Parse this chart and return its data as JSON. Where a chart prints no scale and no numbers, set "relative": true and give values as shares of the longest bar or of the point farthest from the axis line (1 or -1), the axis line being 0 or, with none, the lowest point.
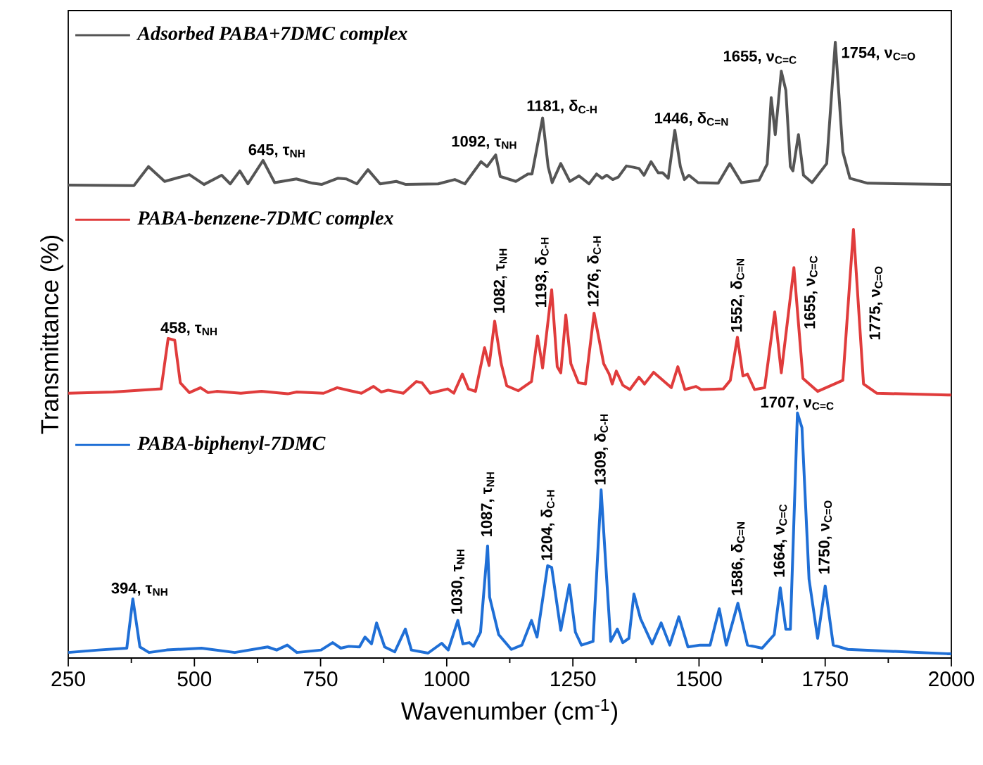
{
  "chart_data": {
    "type": "line",
    "relative": true,
    "legend": "top left",
    "xlabel": "Wavenumber (cm$^{-1}$)",
    "ylabel": "Transmittance (%)",
    "xlim": [
      250,
      2000
    ],
    "xticks": [
      250,
      500,
      750,
      1000,
      1250,
      1500,
      1750,
      2000
    ],
    "series": [
      {
        "name": "Adsorbed PABA+7DMC complex",
        "color": "#555555",
        "x": [
          250,
          380,
          409,
          441,
          490,
          519,
          554,
          571,
          590,
          606,
          636,
          659,
          702,
          734,
          752,
          784,
          801,
          822,
          844,
          868,
          900,
          919,
          983,
          1016,
          1036,
          1068,
          1080,
          1097,
          1106,
          1137,
          1161,
          1169,
          1190,
          1201,
          1209,
          1226,
          1244,
          1262,
          1282,
          1297,
          1308,
          1317,
          1329,
          1340,
          1356,
          1370,
          1381,
          1391,
          1405,
          1419,
          1428,
          1439,
          1452,
          1463,
          1471,
          1480,
          1498,
          1538,
          1561,
          1584,
          1619,
          1635,
          1643,
          1651,
          1663,
          1672,
          1681,
          1686,
          1697,
          1707,
          1724,
          1753,
          1770,
          1785,
          1799,
          1834,
          1986,
          2000
        ],
        "values": [
          0.768,
          0.767,
          0.798,
          0.774,
          0.785,
          0.769,
          0.784,
          0.77,
          0.791,
          0.77,
          0.808,
          0.772,
          0.778,
          0.771,
          0.769,
          0.779,
          0.778,
          0.77,
          0.793,
          0.77,
          0.774,
          0.769,
          0.77,
          0.777,
          0.77,
          0.806,
          0.798,
          0.817,
          0.782,
          0.774,
          0.786,
          0.786,
          0.877,
          0.798,
          0.772,
          0.803,
          0.774,
          0.783,
          0.77,
          0.786,
          0.779,
          0.784,
          0.777,
          0.781,
          0.799,
          0.797,
          0.795,
          0.784,
          0.806,
          0.788,
          0.788,
          0.779,
          0.857,
          0.798,
          0.777,
          0.784,
          0.772,
          0.771,
          0.803,
          0.772,
          0.776,
          0.802,
          0.91,
          0.85,
          0.953,
          0.922,
          0.798,
          0.791,
          0.85,
          0.784,
          0.772,
          0.803,
          1.0,
          0.822,
          0.779,
          0.771,
          0.769,
          0.769
        ]
      },
      {
        "name": "PABA-benzene-7DMC complex",
        "color": "#e03c3c",
        "x": [
          250,
          339,
          434,
          448,
          461,
          472,
          490,
          512,
          527,
          544,
          592,
          633,
          685,
          703,
          756,
          783,
          809,
          831,
          855,
          870,
          884,
          914,
          940,
          951,
          967,
          1002,
          1014,
          1031,
          1043,
          1057,
          1075,
          1084,
          1095,
          1108,
          1119,
          1142,
          1168,
          1180,
          1190,
          1208,
          1219,
          1226,
          1236,
          1246,
          1261,
          1275,
          1292,
          1311,
          1322,
          1328,
          1336,
          1349,
          1363,
          1381,
          1392,
          1410,
          1445,
          1458,
          1472,
          1494,
          1504,
          1548,
          1562,
          1576,
          1587,
          1596,
          1610,
          1630,
          1650,
          1663,
          1688,
          1706,
          1735,
          1785,
          1806,
          1826,
          1852,
          1993,
          2000
        ],
        "values": [
          0.43,
          0.432,
          0.437,
          0.519,
          0.516,
          0.447,
          0.431,
          0.439,
          0.431,
          0.433,
          0.43,
          0.433,
          0.429,
          0.432,
          0.43,
          0.439,
          0.434,
          0.43,
          0.441,
          0.432,
          0.435,
          0.43,
          0.449,
          0.447,
          0.43,
          0.437,
          0.43,
          0.461,
          0.437,
          0.433,
          0.504,
          0.475,
          0.547,
          0.478,
          0.442,
          0.434,
          0.449,
          0.523,
          0.471,
          0.598,
          0.473,
          0.463,
          0.557,
          0.478,
          0.447,
          0.445,
          0.56,
          0.478,
          0.461,
          0.445,
          0.466,
          0.443,
          0.436,
          0.456,
          0.445,
          0.464,
          0.439,
          0.473,
          0.436,
          0.441,
          0.436,
          0.437,
          0.451,
          0.521,
          0.458,
          0.461,
          0.436,
          0.439,
          0.562,
          0.463,
          0.634,
          0.454,
          0.433,
          0.451,
          0.696,
          0.445,
          0.43,
          0.427,
          0.427
        ]
      },
      {
        "name": "PABA-biphenyl-7DMC",
        "color": "#1f6fd6",
        "x": [
          250,
          310,
          366,
          378,
          392,
          410,
          445,
          514,
          580,
          645,
          663,
          684,
          703,
          751,
          774,
          790,
          806,
          827,
          838,
          851,
          861,
          877,
          897,
          918,
          930,
          963,
          990,
          1003,
          1022,
          1032,
          1045,
          1053,
          1067,
          1081,
          1085,
          1103,
          1128,
          1149,
          1168,
          1179,
          1200,
          1208,
          1226,
          1243,
          1255,
          1267,
          1290,
          1306,
          1317,
          1325,
          1338,
          1349,
          1361,
          1371,
          1384,
          1407,
          1425,
          1442,
          1460,
          1478,
          1502,
          1522,
          1540,
          1554,
          1577,
          1596,
          1625,
          1649,
          1661,
          1672,
          1681,
          1695,
          1704,
          1718,
          1735,
          1750,
          1766,
          1795,
          1992,
          2000
        ],
        "values": [
          0.009,
          0.013,
          0.016,
          0.096,
          0.018,
          0.009,
          0.013,
          0.016,
          0.009,
          0.018,
          0.013,
          0.021,
          0.009,
          0.013,
          0.025,
          0.016,
          0.019,
          0.018,
          0.034,
          0.023,
          0.057,
          0.018,
          0.01,
          0.047,
          0.013,
          0.008,
          0.024,
          0.013,
          0.061,
          0.023,
          0.025,
          0.019,
          0.042,
          0.182,
          0.099,
          0.038,
          0.014,
          0.021,
          0.061,
          0.034,
          0.15,
          0.147,
          0.045,
          0.119,
          0.042,
          0.021,
          0.027,
          0.273,
          0.128,
          0.027,
          0.047,
          0.025,
          0.032,
          0.104,
          0.064,
          0.023,
          0.057,
          0.021,
          0.067,
          0.018,
          0.021,
          0.021,
          0.08,
          0.021,
          0.089,
          0.021,
          0.016,
          0.038,
          0.114,
          0.047,
          0.047,
          0.398,
          0.374,
          0.128,
          0.032,
          0.117,
          0.021,
          0.014,
          0.007,
          0.007
        ]
      }
    ],
    "annotations": [
      {
        "text": "645, τ$_{NH}$",
        "x": 636,
        "y": 0.808
      },
      {
        "text": "1092, τ$_{NH}$",
        "x": 1097,
        "y": 0.817
      },
      {
        "text": "1181, δ$_{C-H}$",
        "x": 1190,
        "y": 0.877
      },
      {
        "text": "1446, δ$_{C=N}$",
        "x": 1452,
        "y": 0.857
      },
      {
        "text": "1655, ν$_{C=C}$",
        "x": 1663,
        "y": 0.953
      },
      {
        "text": "1754, ν$_{C=O}$",
        "x": 1770,
        "y": 1.0
      },
      {
        "text": "458, τ$_{NH}$",
        "x": 448,
        "y": 0.519
      },
      {
        "text": "1082, τ$_{NH}$",
        "x": 1095,
        "y": 0.547
      },
      {
        "text": "1193, δ$_{C-H}$",
        "x": 1208,
        "y": 0.598
      },
      {
        "text": "1276, δ$_{C-H}$",
        "x": 1292,
        "y": 0.56
      },
      {
        "text": "1552, δ$_{C=N}$",
        "x": 1576,
        "y": 0.521
      },
      {
        "text": "1655, ν$_{C=C}$",
        "x": 1688,
        "y": 0.634
      },
      {
        "text": "1775, ν$_{C=O}$",
        "x": 1806,
        "y": 0.696
      },
      {
        "text": "394, τ$_{NH}$",
        "x": 378,
        "y": 0.096
      },
      {
        "text": "1030, τ$_{NH}$",
        "x": 1022,
        "y": 0.061
      },
      {
        "text": "1087, τ$_{NH}$",
        "x": 1081,
        "y": 0.182
      },
      {
        "text": "1204, δ$_{C-H}$",
        "x": 1200,
        "y": 0.15
      },
      {
        "text": "1309, δ$_{C-H}$",
        "x": 1306,
        "y": 0.273
      },
      {
        "text": "1586, δ$_{C=N}$",
        "x": 1577,
        "y": 0.089
      },
      {
        "text": "1664, ν$_{C=C}$",
        "x": 1661,
        "y": 0.114
      },
      {
        "text": "1750, ν$_{C=O}$",
        "x": 1750,
        "y": 0.117
      },
      {
        "text": "1707, ν$_{C=C}$",
        "x": 1695,
        "y": 0.398
      }
    ]
  }
}
